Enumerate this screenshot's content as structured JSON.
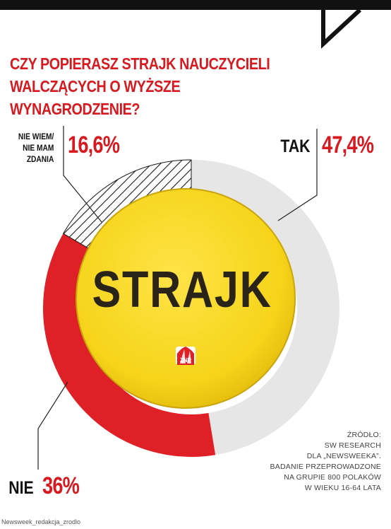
{
  "title_line1": "CZY POPIERASZ STRAJK NAUCZYCIELI",
  "title_line2": "WALCZĄCYCH O WYŻSZE WYNAGRODZENIE?",
  "chart_data": {
    "type": "pie",
    "variant": "donut",
    "title": "CZY POPIERASZ STRAJK NAUCZYCIELI WALCZĄCYCH O WYŻSZE WYNAGRODZENIE?",
    "slices": [
      {
        "label": "TAK",
        "value": 47.4,
        "value_label": "47,4%",
        "color": "#e6e6e6"
      },
      {
        "label": "NIE",
        "value": 36,
        "value_label": "36%",
        "color": "#e02027"
      },
      {
        "label_lines": [
          "NIE WIEM/",
          "NIE MAM",
          "ZDANIA"
        ],
        "value": 16.6,
        "value_label": "16,6%",
        "color": "hatched"
      }
    ]
  },
  "badge": {
    "text": "STRAJK",
    "logo_text": "ZNP",
    "color": "#f5d419"
  },
  "source_lines": [
    "ŹRÓDŁO:",
    "SW RESEARCH",
    "DLA „NEWSWEEKA”.",
    "BADANIE PRZEPROWADZONE",
    "NA GRUPIE 800 POLAKÓW",
    "W WIEKU 16-64 LATA"
  ],
  "caption": "Newsweek_redakcja_zrodlo"
}
